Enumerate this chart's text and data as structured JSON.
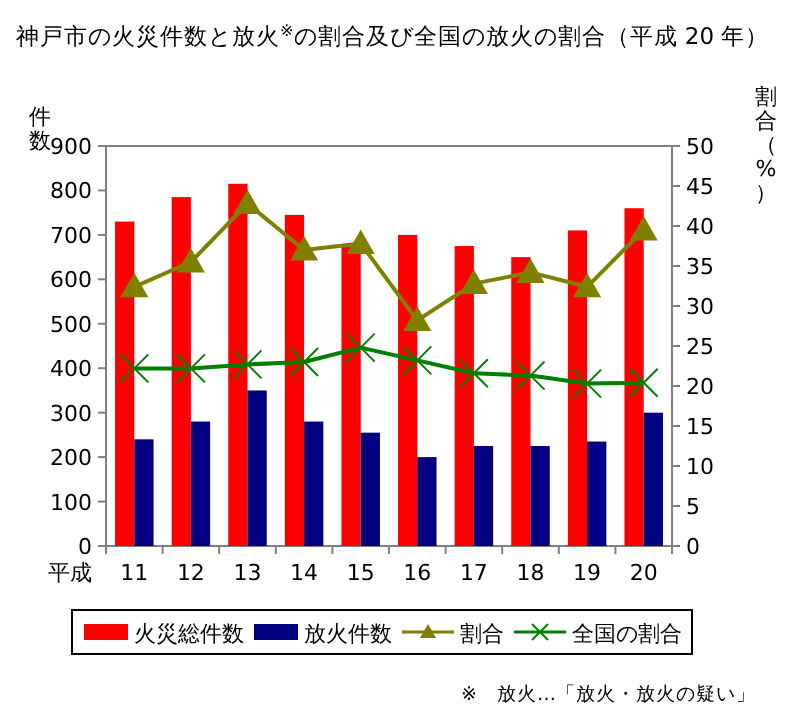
{
  "chart_data": {
    "type": "bar",
    "title": "神戸市の火災件数と放火$^{※}$の割合及び全国の放火の割合（平成 20 年）",
    "xlabel": "平成",
    "ylabel": "件数",
    "y2label": "割合（%）",
    "categories": [
      "11",
      "12",
      "13",
      "14",
      "15",
      "16",
      "17",
      "18",
      "19",
      "20"
    ],
    "series": [
      {
        "name": "火災総件数",
        "color": "#ff0000",
        "values": [
          730,
          785,
          815,
          745,
          675,
          700,
          675,
          650,
          710,
          760
        ]
      },
      {
        "name": "放火件数",
        "color": "#000080",
        "values": [
          240,
          280,
          350,
          280,
          255,
          200,
          225,
          225,
          235,
          300
        ]
      },
      {
        "name": "割合",
        "type": "line",
        "axis": "y2",
        "marker": "triangle",
        "color": "#808000",
        "values": [
          32.4,
          35.5,
          42.8,
          37,
          37.8,
          28.2,
          32.8,
          34.2,
          32.4,
          39.5
        ]
      },
      {
        "name": "全国の割合",
        "type": "line",
        "axis": "y2",
        "marker": "cross",
        "color": "#008000",
        "values": [
          22.2,
          22.2,
          22.7,
          23,
          24.8,
          23.2,
          21.6,
          21.3,
          20.3,
          20.4
        ]
      }
    ],
    "ylim": [
      0,
      900
    ],
    "yticks": [
      0,
      100,
      200,
      300,
      400,
      500,
      600,
      700,
      800,
      900
    ],
    "y2lim": [
      0,
      50
    ],
    "y2ticks": [
      0,
      5,
      10,
      15,
      20,
      25,
      30,
      35,
      40,
      45,
      50
    ],
    "legend": "bottom",
    "annotations": [
      "※　放火…「放火・放火の疑い」"
    ]
  }
}
